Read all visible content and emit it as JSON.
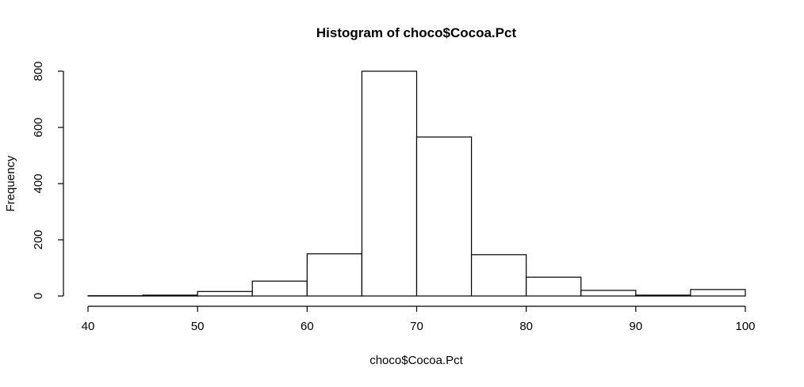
{
  "chart_data": {
    "type": "bar",
    "title": "Histogram of choco$Cocoa.Pct",
    "xlabel": "choco$Cocoa.Pct",
    "ylabel": "Frequency",
    "xlim": [
      40,
      100
    ],
    "ylim": [
      0,
      800
    ],
    "x_ticks": [
      40,
      50,
      60,
      70,
      80,
      90,
      100
    ],
    "y_ticks": [
      0,
      200,
      400,
      600,
      800
    ],
    "bins": [
      {
        "start": 40,
        "end": 45,
        "count": 1
      },
      {
        "start": 45,
        "end": 50,
        "count": 3
      },
      {
        "start": 50,
        "end": 55,
        "count": 16
      },
      {
        "start": 55,
        "end": 60,
        "count": 53
      },
      {
        "start": 60,
        "end": 65,
        "count": 150
      },
      {
        "start": 65,
        "end": 70,
        "count": 800
      },
      {
        "start": 70,
        "end": 75,
        "count": 566
      },
      {
        "start": 75,
        "end": 80,
        "count": 147
      },
      {
        "start": 80,
        "end": 85,
        "count": 67
      },
      {
        "start": 85,
        "end": 90,
        "count": 20
      },
      {
        "start": 90,
        "end": 95,
        "count": 3
      },
      {
        "start": 95,
        "end": 100,
        "count": 23
      }
    ],
    "colors": {
      "bar_fill": "#ffffff",
      "bar_stroke": "#000000",
      "axis": "#000000"
    },
    "grid": false,
    "legend": "none"
  }
}
